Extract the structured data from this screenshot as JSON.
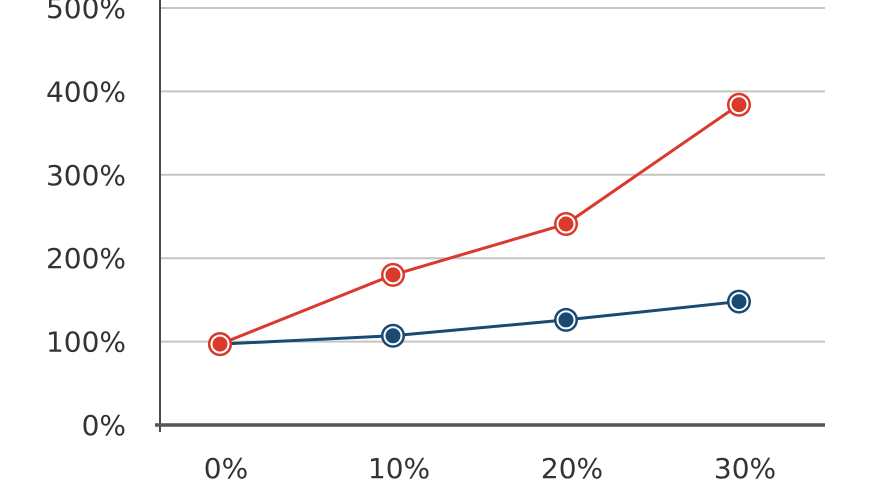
{
  "chart_data": {
    "type": "line",
    "categories": [
      "0%",
      "10%",
      "20%",
      "30%"
    ],
    "y_ticks": [
      "0%",
      "100%",
      "200%",
      "300%",
      "400%",
      "500%"
    ],
    "ylim": [
      0,
      500
    ],
    "grid": true,
    "series": [
      {
        "color": "#d93a2b",
        "values": [
          97,
          180,
          241,
          384
        ]
      },
      {
        "color": "#184a73",
        "values": [
          97,
          107,
          126,
          148
        ]
      }
    ]
  }
}
